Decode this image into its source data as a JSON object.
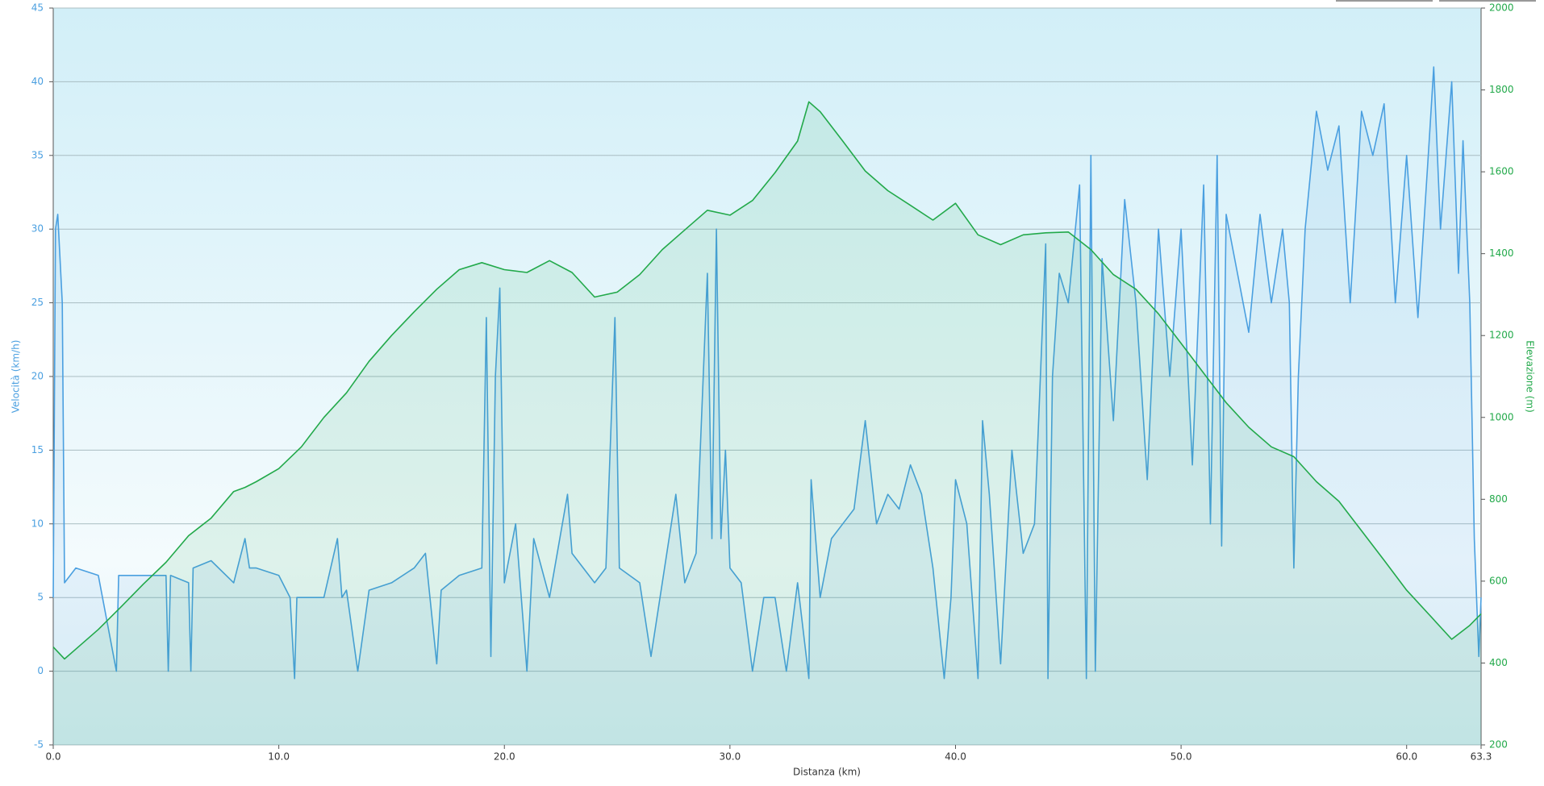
{
  "chart_data": {
    "type": "line",
    "xlabel": "Distanza  (km)",
    "ylabel": "Velocità (km/h)",
    "y2label": "Elevazione (m)",
    "xlim": [
      0,
      63.3
    ],
    "xticks": [
      {
        "value": 0,
        "label": "0.0"
      },
      {
        "value": 10,
        "label": "10.0"
      },
      {
        "value": 20,
        "label": "20.0"
      },
      {
        "value": 30,
        "label": "30.0"
      },
      {
        "value": 40,
        "label": "40.0"
      },
      {
        "value": 50,
        "label": "50.0"
      },
      {
        "value": 60,
        "label": "60.0"
      },
      {
        "value": 63.3,
        "label": "63.3"
      }
    ],
    "ylim": [
      -5,
      45
    ],
    "yticks": [
      -5,
      0,
      5,
      10,
      15,
      20,
      25,
      30,
      35,
      40,
      45
    ],
    "y2lim": [
      200,
      2000
    ],
    "y2ticks": [
      200,
      400,
      600,
      800,
      1000,
      1200,
      1400,
      1600,
      1800,
      2000
    ],
    "grid": true,
    "series": [
      {
        "name": "Velocità",
        "color": "#4a9fe0",
        "axis": "y",
        "x": [
          0,
          0.1,
          0.2,
          0.4,
          0.5,
          1,
          2,
          2.8,
          2.9,
          4,
          5,
          5.1,
          5.2,
          6,
          6.1,
          6.2,
          7,
          8,
          8.5,
          8.7,
          9,
          10,
          10.5,
          10.7,
          10.8,
          12,
          12.6,
          12.8,
          13,
          13.5,
          14,
          15,
          16,
          16.5,
          17,
          17.2,
          18,
          19,
          19.2,
          19.4,
          19.6,
          19.8,
          20,
          20.5,
          21,
          21.3,
          22,
          22.8,
          23,
          24,
          24.5,
          24.9,
          25.1,
          26,
          26.5,
          27,
          27.6,
          28,
          28.5,
          29,
          29.2,
          29.4,
          29.6,
          29.8,
          30,
          30.5,
          31,
          31.5,
          32,
          32.5,
          33,
          33.5,
          33.6,
          34,
          34.5,
          35,
          35.5,
          36,
          36.5,
          37,
          37.5,
          38,
          38.5,
          39,
          39.5,
          39.8,
          40,
          40.5,
          41,
          41.2,
          41.5,
          42,
          42.5,
          43,
          43.5,
          44,
          44.1,
          44.3,
          44.6,
          45,
          45.5,
          45.8,
          46,
          46.2,
          46.5,
          47,
          47.5,
          48,
          48.5,
          49,
          49.5,
          50,
          50.5,
          51,
          51.3,
          51.6,
          51.8,
          52,
          53,
          53.5,
          54,
          54.5,
          54.8,
          55,
          55.2,
          55.5,
          56,
          56.5,
          57,
          57.5,
          58,
          58.5,
          59,
          59.5,
          60,
          60.5,
          61,
          61.2,
          61.5,
          62,
          62.3,
          62.5,
          62.8,
          63,
          63.2,
          63.3
        ],
        "values": [
          5,
          30,
          31,
          25,
          6,
          7,
          6.5,
          0,
          6.5,
          6.5,
          6.5,
          0,
          6.5,
          6,
          0,
          7,
          7.5,
          6,
          9,
          7,
          7,
          6.5,
          5,
          -0.5,
          5,
          5,
          9,
          5,
          5.5,
          0,
          5.5,
          6,
          7,
          8,
          0.5,
          5.5,
          6.5,
          7,
          24,
          1,
          20,
          26,
          6,
          10,
          0,
          9,
          5,
          12,
          8,
          6,
          7,
          24,
          7,
          6,
          1,
          6,
          12,
          6,
          8,
          27,
          9,
          30,
          9,
          15,
          7,
          6,
          0,
          5,
          5,
          0,
          6,
          -0.5,
          13,
          5,
          9,
          10,
          11,
          17,
          10,
          12,
          11,
          14,
          12,
          7,
          -0.5,
          5,
          13,
          10,
          -0.5,
          17,
          12,
          0.5,
          15,
          8,
          10,
          29,
          -0.5,
          20,
          27,
          25,
          33,
          -0.5,
          35,
          0,
          28,
          17,
          32,
          25,
          13,
          30,
          20,
          30,
          14,
          33,
          10,
          35,
          8.5,
          31,
          23,
          31,
          25,
          30,
          25,
          7,
          20,
          30,
          38,
          34,
          37,
          25,
          38,
          35,
          38.5,
          25,
          35,
          24,
          36,
          41,
          30,
          40,
          27,
          36,
          25,
          9,
          1,
          5
        ]
      },
      {
        "name": "Elevazione",
        "color": "#22a94a",
        "axis": "y2",
        "x": [
          0,
          0.5,
          1,
          2,
          3,
          4,
          5,
          6,
          7,
          8,
          8.5,
          9,
          10,
          11,
          12,
          13,
          14,
          15,
          16,
          17,
          18,
          19,
          20,
          21,
          22,
          23,
          24,
          25,
          26,
          27,
          28,
          29,
          30,
          31,
          32,
          33,
          33.5,
          34,
          35,
          36,
          37,
          38,
          39,
          40,
          41,
          42,
          43,
          44,
          45,
          46,
          47,
          48,
          49,
          50,
          51,
          52,
          53,
          54,
          55,
          56,
          57,
          58,
          59,
          60,
          61,
          62,
          62.8,
          63.3
        ],
        "values": [
          439,
          410,
          434,
          482,
          537,
          593,
          646,
          711,
          754,
          819,
          829,
          843,
          875,
          928,
          1000,
          1060,
          1137,
          1200,
          1258,
          1313,
          1361,
          1378,
          1361,
          1354,
          1383,
          1354,
          1294,
          1306,
          1349,
          1410,
          1458,
          1506,
          1494,
          1530,
          1598,
          1675,
          1771,
          1747,
          1675,
          1602,
          1554,
          1518,
          1482,
          1523,
          1446,
          1422,
          1446,
          1451,
          1453,
          1410,
          1349,
          1313,
          1253,
          1181,
          1108,
          1036,
          976,
          928,
          904,
          843,
          795,
          723,
          651,
          578,
          518,
          458,
          492,
          520
        ]
      }
    ]
  }
}
